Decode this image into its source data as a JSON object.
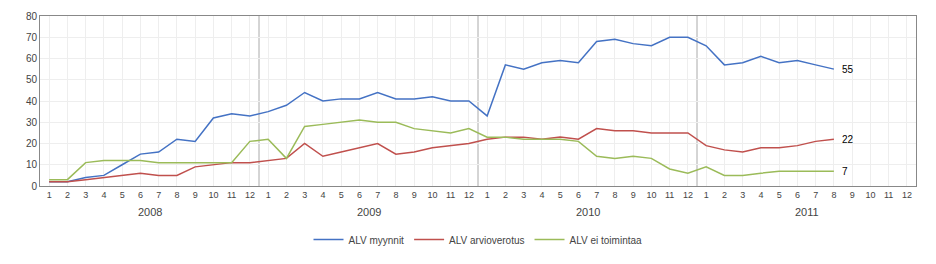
{
  "chart_data": {
    "type": "line",
    "categories": [
      "1",
      "2",
      "3",
      "4",
      "5",
      "6",
      "7",
      "8",
      "9",
      "10",
      "11",
      "12",
      "1",
      "2",
      "3",
      "4",
      "5",
      "6",
      "7",
      "8",
      "9",
      "10",
      "11",
      "12",
      "1",
      "2",
      "3",
      "4",
      "5",
      "6",
      "7",
      "8",
      "9",
      "10",
      "11",
      "12",
      "1",
      "2",
      "3",
      "4",
      "5",
      "6",
      "7",
      "8",
      "9",
      "10",
      "11",
      "12"
    ],
    "series": [
      {
        "name": "ALV myynnit",
        "color": "#4472C4",
        "values": [
          2,
          2,
          4,
          5,
          10,
          15,
          16,
          22,
          21,
          32,
          34,
          33,
          35,
          38,
          44,
          40,
          41,
          41,
          44,
          41,
          41,
          42,
          40,
          40,
          33,
          57,
          55,
          58,
          59,
          58,
          68,
          69,
          67,
          66,
          70,
          70,
          66,
          57,
          58,
          61,
          58,
          59,
          57,
          55,
          null,
          null,
          null,
          null
        ]
      },
      {
        "name": "ALV arvioverotus",
        "color": "#C0504D",
        "values": [
          2,
          2,
          3,
          4,
          5,
          6,
          5,
          5,
          9,
          10,
          11,
          11,
          12,
          13,
          20,
          14,
          16,
          18,
          20,
          15,
          16,
          18,
          19,
          20,
          22,
          23,
          23,
          22,
          23,
          22,
          27,
          26,
          26,
          25,
          25,
          25,
          19,
          17,
          16,
          18,
          18,
          19,
          21,
          22,
          null,
          null,
          null,
          null
        ]
      },
      {
        "name": "ALV ei toimintaa",
        "color": "#9BBB59",
        "values": [
          3,
          3,
          11,
          12,
          12,
          12,
          11,
          11,
          11,
          11,
          11,
          21,
          22,
          13,
          28,
          29,
          30,
          31,
          30,
          30,
          27,
          26,
          25,
          27,
          23,
          23,
          22,
          22,
          22,
          21,
          14,
          13,
          14,
          13,
          8,
          6,
          9,
          5,
          5,
          6,
          7,
          7,
          7,
          7,
          null,
          null,
          null,
          null
        ]
      }
    ],
    "annotations": [
      {
        "text": "2008"
      },
      {
        "text": "2009"
      },
      {
        "text": "2010"
      },
      {
        "text": "2011"
      },
      {
        "text": "55",
        "series": "ALV myynnit"
      },
      {
        "text": "22",
        "series": "ALV arvioverotus"
      },
      {
        "text": "7",
        "series": "ALV ei toimintaa"
      }
    ],
    "ylim": [
      0,
      80
    ],
    "yticks": [
      0,
      10,
      20,
      30,
      40,
      50,
      60,
      70,
      80
    ],
    "grid": true,
    "legend": "bottom"
  }
}
